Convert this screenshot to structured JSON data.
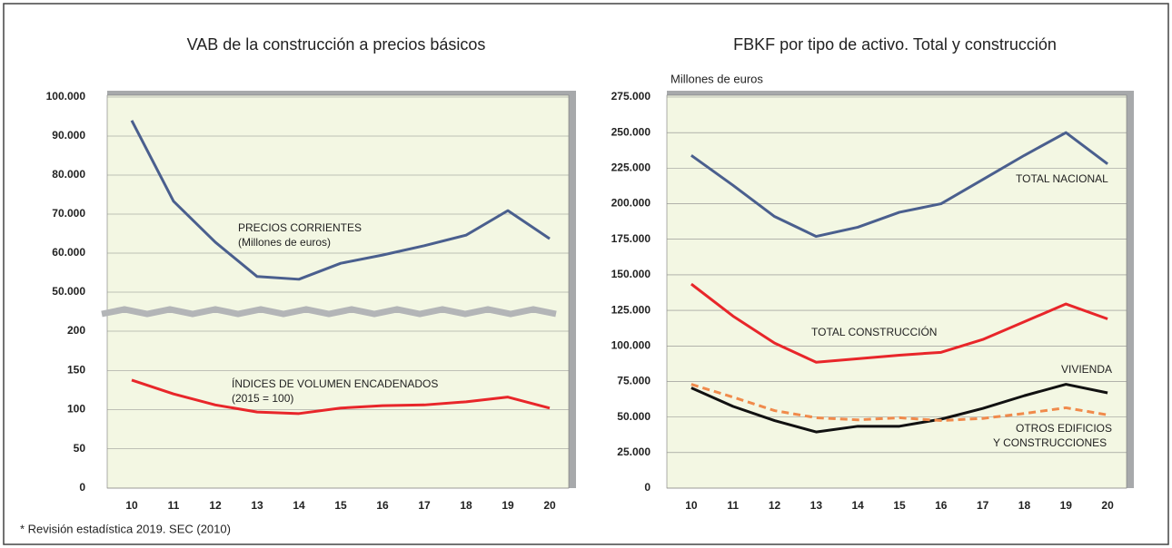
{
  "footnote": "* Revisión estadística 2019. SEC (2010)",
  "chart_data": [
    {
      "type": "line",
      "title": "VAB de la construcción a precios básicos",
      "categories": [
        "10",
        "11",
        "12",
        "13",
        "14",
        "15",
        "16",
        "17",
        "18",
        "19",
        "20"
      ],
      "series": [
        {
          "name": "PRECIOS CORRIENTES",
          "note": "(Millones de euros)",
          "color": "#4a5f8e",
          "axis": "y",
          "values": [
            94000,
            73300,
            62800,
            54000,
            53300,
            57400,
            59500,
            61900,
            64600,
            70900,
            63700
          ]
        },
        {
          "name": "ÍNDICES DE VOLUMEN ENCADENADOS",
          "note": "(2015 = 100)",
          "color": "#e8262a",
          "axis": "y2",
          "values": [
            137.6,
            120,
            106,
            97,
            95,
            102,
            105,
            106,
            110,
            116,
            102
          ]
        }
      ],
      "ylim": [
        50000,
        100000
      ],
      "yticks": [
        {
          "value": 50000,
          "label": "50.000"
        },
        {
          "value": 60000,
          "label": "60.000"
        },
        {
          "value": 70000,
          "label": "70.000"
        },
        {
          "value": 80000,
          "label": "80.000"
        },
        {
          "value": 90000,
          "label": "90.000"
        },
        {
          "value": 100000,
          "label": "100.000"
        }
      ],
      "y2lim": [
        0,
        200
      ],
      "y2ticks": [
        0,
        50,
        100,
        150,
        200
      ],
      "grid": true
    },
    {
      "type": "line",
      "title": "FBKF por tipo de activo. Total y construcción",
      "ylabel": "Millones de euros",
      "categories": [
        "10",
        "11",
        "12",
        "13",
        "14",
        "15",
        "16",
        "17",
        "18",
        "19",
        "20"
      ],
      "series": [
        {
          "name": "TOTAL NACIONAL",
          "color": "#4a5f8e",
          "values": [
            234000,
            213000,
            191000,
            177000,
            183500,
            194000,
            200000,
            217000,
            234000,
            250000,
            228000
          ]
        },
        {
          "name": "TOTAL CONSTRUCCIÓN",
          "color": "#e8262a",
          "values": [
            143500,
            121000,
            102000,
            88500,
            91000,
            93500,
            95500,
            104500,
            117000,
            129500,
            119000
          ]
        },
        {
          "name": "VIVIENDA",
          "color": "#111111",
          "values": [
            70500,
            57500,
            47500,
            39500,
            43500,
            43500,
            48500,
            56000,
            65000,
            73000,
            67000
          ]
        },
        {
          "name": "OTROS EDIFICIOS",
          "note": "Y CONSTRUCCIONES",
          "color": "#f08a4b",
          "dashed": true,
          "values": [
            73000,
            64000,
            54500,
            49500,
            48000,
            49500,
            47500,
            49000,
            52500,
            56500,
            51500
          ]
        }
      ],
      "ylim": [
        0,
        275000
      ],
      "yticks": [
        0,
        {
          "value": 25000,
          "label": "25.000"
        },
        {
          "value": 50000,
          "label": "50.000"
        },
        {
          "value": 75000,
          "label": "75.000"
        },
        {
          "value": 100000,
          "label": "100.000"
        },
        {
          "value": 125000,
          "label": "125.000"
        },
        {
          "value": 150000,
          "label": "150.000"
        },
        {
          "value": 175000,
          "label": "175.000"
        },
        {
          "value": 200000,
          "label": "200.000"
        },
        {
          "value": 225000,
          "label": "225.000"
        },
        {
          "value": 250000,
          "label": "250.000"
        },
        {
          "value": 275000,
          "label": "275.000"
        }
      ],
      "grid": true
    }
  ]
}
